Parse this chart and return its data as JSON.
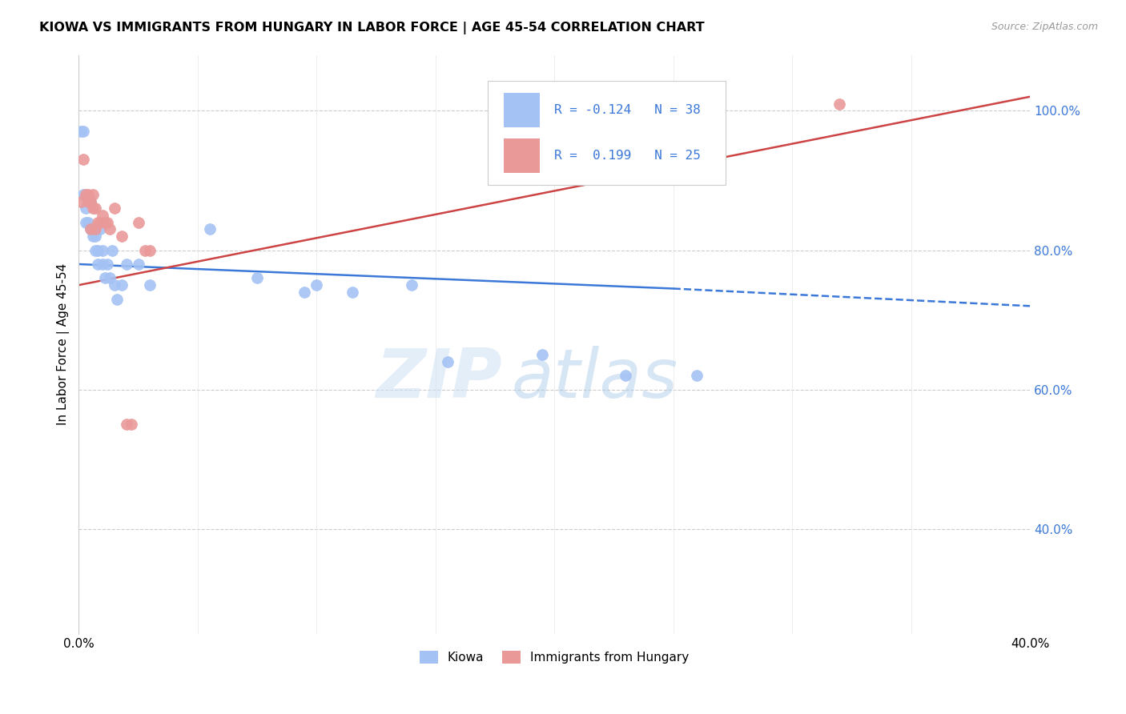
{
  "title": "KIOWA VS IMMIGRANTS FROM HUNGARY IN LABOR FORCE | AGE 45-54 CORRELATION CHART",
  "source": "Source: ZipAtlas.com",
  "ylabel": "In Labor Force | Age 45-54",
  "xlim": [
    0.0,
    0.4
  ],
  "ylim": [
    0.25,
    1.08
  ],
  "yticks": [
    0.4,
    0.6,
    0.8,
    1.0
  ],
  "ytick_labels": [
    "40.0%",
    "60.0%",
    "80.0%",
    "100.0%"
  ],
  "xticks": [
    0.0,
    0.05,
    0.1,
    0.15,
    0.2,
    0.25,
    0.3,
    0.35,
    0.4
  ],
  "xtick_labels": [
    "0.0%",
    "",
    "",
    "",
    "",
    "",
    "",
    "",
    "40.0%"
  ],
  "kiowa_x": [
    0.001,
    0.002,
    0.002,
    0.003,
    0.003,
    0.004,
    0.004,
    0.005,
    0.005,
    0.006,
    0.006,
    0.007,
    0.007,
    0.008,
    0.008,
    0.009,
    0.01,
    0.01,
    0.011,
    0.012,
    0.013,
    0.014,
    0.015,
    0.016,
    0.018,
    0.02,
    0.025,
    0.03,
    0.055,
    0.075,
    0.095,
    0.1,
    0.115,
    0.14,
    0.155,
    0.195,
    0.23,
    0.26
  ],
  "kiowa_y": [
    0.97,
    0.97,
    0.88,
    0.86,
    0.84,
    0.84,
    0.87,
    0.83,
    0.87,
    0.83,
    0.82,
    0.82,
    0.8,
    0.8,
    0.78,
    0.83,
    0.8,
    0.78,
    0.76,
    0.78,
    0.76,
    0.8,
    0.75,
    0.73,
    0.75,
    0.78,
    0.78,
    0.75,
    0.83,
    0.76,
    0.74,
    0.75,
    0.74,
    0.75,
    0.64,
    0.65,
    0.62,
    0.62
  ],
  "hungary_x": [
    0.001,
    0.002,
    0.003,
    0.004,
    0.004,
    0.005,
    0.005,
    0.006,
    0.006,
    0.007,
    0.007,
    0.008,
    0.009,
    0.01,
    0.011,
    0.012,
    0.013,
    0.015,
    0.018,
    0.02,
    0.022,
    0.025,
    0.028,
    0.03,
    0.32
  ],
  "hungary_y": [
    0.87,
    0.93,
    0.88,
    0.87,
    0.88,
    0.87,
    0.83,
    0.86,
    0.88,
    0.83,
    0.86,
    0.84,
    0.84,
    0.85,
    0.84,
    0.84,
    0.83,
    0.86,
    0.82,
    0.55,
    0.55,
    0.84,
    0.8,
    0.8,
    1.01
  ],
  "kiowa_color": "#a4c2f4",
  "hungary_color": "#ea9999",
  "kiowa_R": -0.124,
  "kiowa_N": 38,
  "hungary_R": 0.199,
  "hungary_N": 25,
  "trend_color_kiowa": "#3c78d8",
  "trend_color_hungary": "#cc4444",
  "watermark_zip": "ZIP",
  "watermark_atlas": "atlas",
  "legend_label1": "Kiowa",
  "legend_label2": "Immigrants from Hungary"
}
